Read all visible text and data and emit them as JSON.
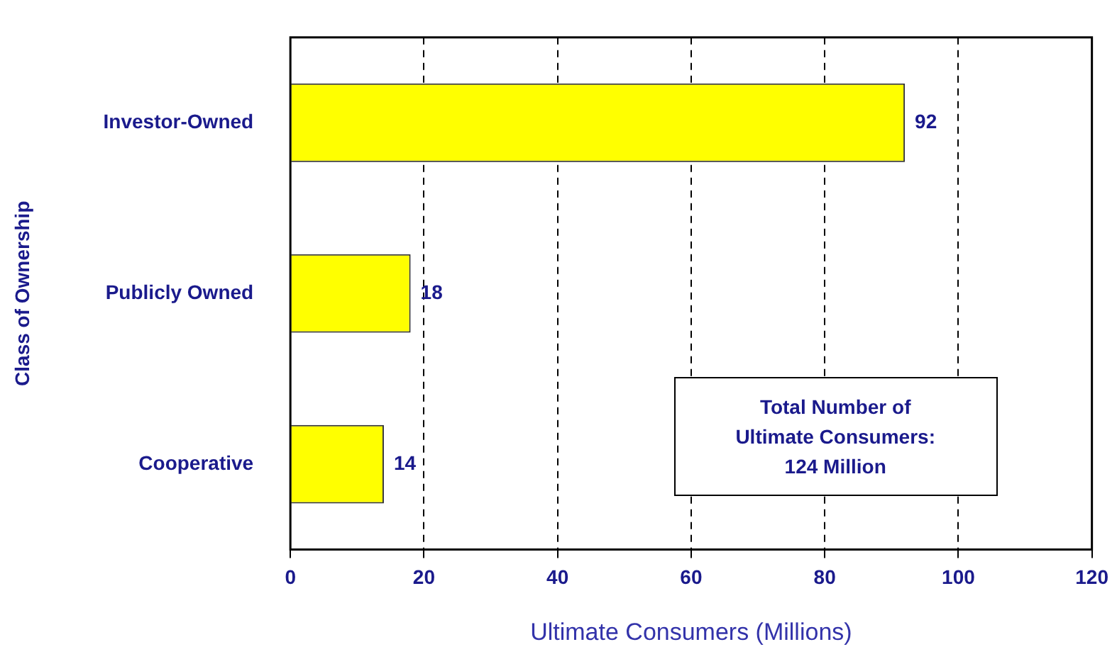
{
  "chart_data": {
    "type": "bar",
    "orientation": "horizontal",
    "categories": [
      "Investor-Owned",
      "Publicly Owned",
      "Cooperative"
    ],
    "values": [
      92,
      18,
      14
    ],
    "color": "#ffff00",
    "xlim": [
      0,
      120
    ],
    "xticks": [
      0,
      20,
      40,
      60,
      80,
      100,
      120
    ],
    "xlabel": "Ultimate Consumers (Millions)",
    "ylabel": "Class of Ownership",
    "grid": "x",
    "line_style": "dashed",
    "data_labels": true,
    "legend": false,
    "annotations": [
      "Total Number of\nUltimate Consumers:\n124 Million"
    ]
  }
}
